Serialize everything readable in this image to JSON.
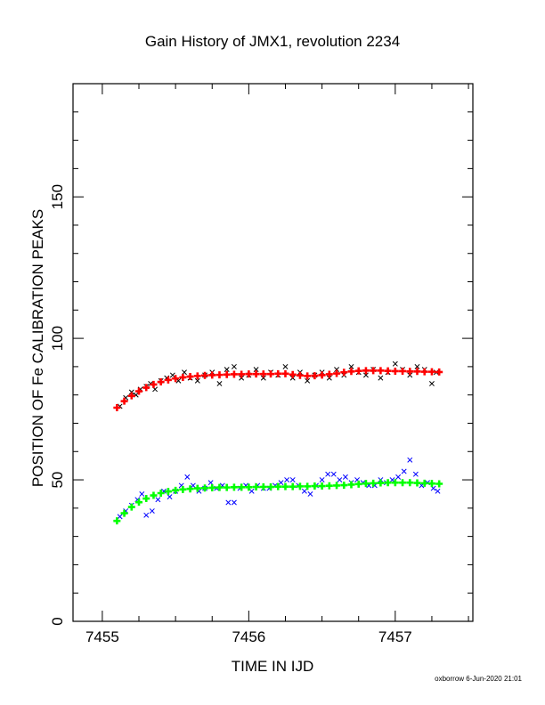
{
  "chart_data": {
    "type": "scatter",
    "title": "Gain History of JMX1, revolution 2234",
    "xlabel": "TIME IN IJD",
    "ylabel": "POSITION OF Fe CALIBRATION PEAKS",
    "xlim": [
      7454.8,
      7457.53
    ],
    "ylim": [
      0,
      190
    ],
    "x_ticks": [
      7455,
      7456,
      7457
    ],
    "y_ticks": [
      0,
      50,
      100,
      150
    ],
    "grid": false,
    "series": [
      {
        "color": "#000000",
        "marker": "x",
        "x": [
          7455.12,
          7455.16,
          7455.2,
          7455.23,
          7455.26,
          7455.3,
          7455.33,
          7455.36,
          7455.4,
          7455.44,
          7455.48,
          7455.52,
          7455.56,
          7455.6,
          7455.65,
          7455.7,
          7455.75,
          7455.8,
          7455.85,
          7455.9,
          7455.95,
          7456.0,
          7456.05,
          7456.1,
          7456.15,
          7456.2,
          7456.25,
          7456.3,
          7456.35,
          7456.4,
          7456.45,
          7456.5,
          7456.55,
          7456.6,
          7456.65,
          7456.7,
          7456.75,
          7456.8,
          7456.85,
          7456.9,
          7456.95,
          7457.0,
          7457.05,
          7457.1,
          7457.15,
          7457.2,
          7457.25,
          7457.28
        ],
        "y": [
          76,
          79,
          81,
          80,
          82,
          83,
          84,
          82,
          85,
          86,
          87,
          85,
          88,
          86,
          85,
          87,
          88,
          84,
          89,
          90,
          86,
          87,
          89,
          86,
          88,
          87,
          90,
          86,
          88,
          85,
          87,
          88,
          86,
          89,
          87,
          90,
          88,
          87,
          89,
          86,
          88,
          91,
          89,
          87,
          90,
          89,
          84,
          88
        ]
      },
      {
        "color": "#ff0000",
        "marker": "+",
        "x": [
          7455.1,
          7455.15,
          7455.2,
          7455.25,
          7455.3,
          7455.35,
          7455.4,
          7455.45,
          7455.5,
          7455.55,
          7455.6,
          7455.65,
          7455.7,
          7455.75,
          7455.8,
          7455.85,
          7455.9,
          7455.95,
          7456.0,
          7456.05,
          7456.1,
          7456.15,
          7456.2,
          7456.25,
          7456.3,
          7456.35,
          7456.4,
          7456.45,
          7456.5,
          7456.55,
          7456.6,
          7456.65,
          7456.7,
          7456.75,
          7456.8,
          7456.85,
          7456.9,
          7456.95,
          7457.0,
          7457.05,
          7457.1,
          7457.15,
          7457.2,
          7457.25,
          7457.3
        ],
        "y": [
          75.5,
          77.8,
          79.7,
          81.3,
          82.6,
          83.7,
          84.6,
          85.3,
          85.8,
          86.2,
          86.5,
          86.7,
          86.9,
          87.0,
          87.1,
          87.2,
          87.3,
          87.3,
          87.4,
          87.4,
          87.4,
          87.4,
          87.5,
          87.5,
          87.2,
          86.9,
          86.7,
          86.8,
          87.0,
          87.3,
          87.6,
          88.0,
          88.3,
          88.5,
          88.6,
          88.6,
          88.6,
          88.5,
          88.4,
          88.4,
          88.3,
          88.3,
          88.2,
          88.2,
          88.1
        ]
      },
      {
        "color": "#0000ff",
        "marker": "x",
        "x": [
          7455.12,
          7455.16,
          7455.2,
          7455.24,
          7455.27,
          7455.3,
          7455.34,
          7455.38,
          7455.42,
          7455.46,
          7455.5,
          7455.54,
          7455.58,
          7455.62,
          7455.66,
          7455.7,
          7455.74,
          7455.78,
          7455.82,
          7455.86,
          7455.9,
          7455.94,
          7455.98,
          7456.02,
          7456.06,
          7456.1,
          7456.14,
          7456.18,
          7456.22,
          7456.26,
          7456.3,
          7456.34,
          7456.38,
          7456.42,
          7456.46,
          7456.5,
          7456.54,
          7456.58,
          7456.62,
          7456.66,
          7456.7,
          7456.74,
          7456.78,
          7456.82,
          7456.86,
          7456.9,
          7456.94,
          7456.98,
          7457.02,
          7457.06,
          7457.1,
          7457.14,
          7457.18,
          7457.22,
          7457.26,
          7457.29
        ],
        "y": [
          37,
          39,
          41,
          43,
          45,
          37.5,
          39,
          43,
          46,
          44,
          46,
          48,
          51,
          48,
          46,
          47,
          49,
          47,
          48,
          42,
          42,
          47,
          48,
          46,
          48,
          47,
          47,
          48,
          49,
          50,
          50,
          48,
          46,
          45,
          48,
          50,
          52,
          52,
          50,
          51,
          49,
          50,
          49,
          48,
          48,
          50,
          49,
          50,
          51,
          53,
          57,
          52,
          48,
          49,
          47,
          46
        ]
      },
      {
        "color": "#00ff00",
        "marker": "+",
        "x": [
          7455.1,
          7455.15,
          7455.2,
          7455.25,
          7455.3,
          7455.35,
          7455.4,
          7455.45,
          7455.5,
          7455.55,
          7455.6,
          7455.65,
          7455.7,
          7455.75,
          7455.8,
          7455.85,
          7455.9,
          7455.95,
          7456.0,
          7456.05,
          7456.1,
          7456.15,
          7456.2,
          7456.25,
          7456.3,
          7456.35,
          7456.4,
          7456.45,
          7456.5,
          7456.55,
          7456.6,
          7456.65,
          7456.7,
          7456.75,
          7456.8,
          7456.85,
          7456.9,
          7456.95,
          7457.0,
          7457.05,
          7457.1,
          7457.15,
          7457.2,
          7457.25,
          7457.3
        ],
        "y": [
          35.5,
          38.2,
          40.4,
          42.1,
          43.4,
          44.5,
          45.3,
          45.9,
          46.3,
          46.6,
          46.8,
          47.0,
          47.1,
          47.2,
          47.3,
          47.3,
          47.4,
          47.4,
          47.4,
          47.5,
          47.5,
          47.5,
          47.6,
          47.6,
          47.6,
          47.7,
          47.7,
          47.8,
          47.8,
          47.9,
          48.0,
          48.1,
          48.3,
          48.5,
          48.7,
          48.8,
          48.9,
          49.0,
          49.0,
          49.0,
          49.0,
          48.9,
          48.8,
          48.7,
          48.6
        ]
      }
    ]
  },
  "footer": {
    "credit": "oxborrow  6-Jun-2020 21:01"
  }
}
